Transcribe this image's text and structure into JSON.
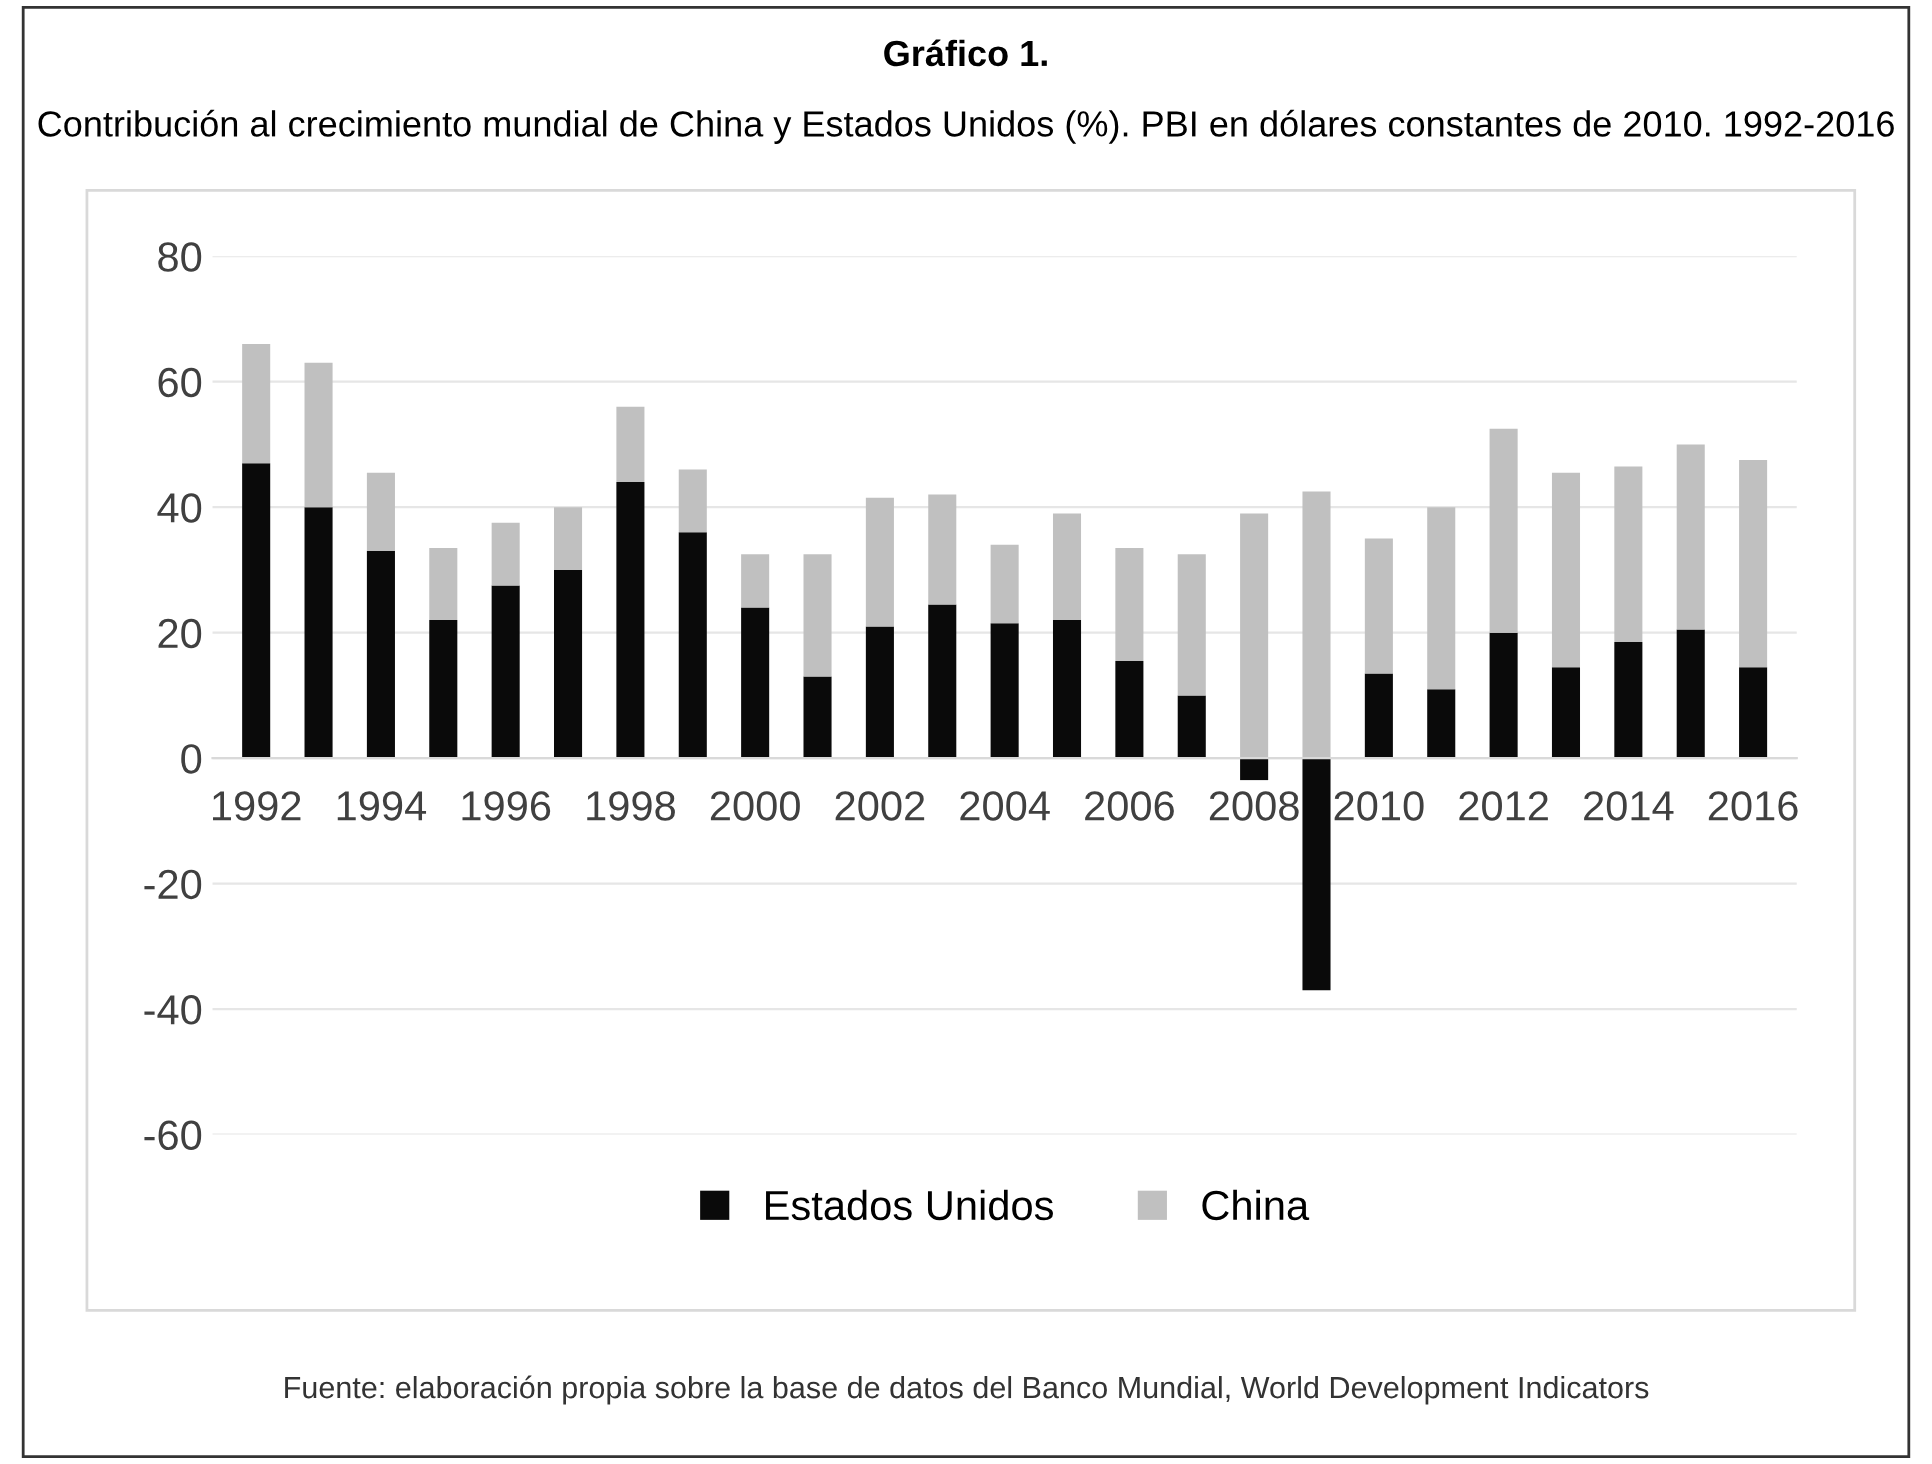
{
  "chart_data": {
    "type": "bar",
    "stacked": true,
    "title": "Gráfico 1.",
    "subtitle": "Contribución al crecimiento mundial de China y Estados Unidos (%). PBI en dólares constantes de 2010. 1992-2016",
    "categories": [
      "1992",
      null,
      "1994",
      null,
      "1996",
      null,
      "1998",
      null,
      "2000",
      null,
      "2002",
      null,
      "2004",
      null,
      "2006",
      null,
      "2008",
      null,
      "2010",
      null,
      "2012",
      null,
      "2014",
      null,
      "2016"
    ],
    "series": [
      {
        "name": "Estados Unidos",
        "color": "#0a0a0a",
        "values": [
          47,
          40,
          33,
          22,
          27.5,
          30,
          44,
          36,
          24,
          13,
          21,
          24.5,
          21.5,
          22,
          15.5,
          10,
          -3.5,
          -37,
          13.5,
          11,
          20,
          14.5,
          18.5,
          20.5,
          14.5
        ]
      },
      {
        "name": "China",
        "color": "#c0c0c0",
        "values": [
          19,
          23,
          12.5,
          11.5,
          10,
          10,
          12,
          10,
          8.5,
          19.5,
          20.5,
          17.5,
          12.5,
          17,
          18,
          22.5,
          39,
          42.5,
          21.5,
          29,
          32.5,
          31,
          28,
          29.5,
          33
        ]
      }
    ],
    "ylim": [
      -60,
      80
    ],
    "yticks": [
      -60,
      -40,
      -20,
      0,
      20,
      40,
      60,
      80
    ],
    "grid": "y",
    "legend": "bottom",
    "annotations": [
      "Fuente: elaboración propia sobre la base de datos del Banco Mundial, World Development Indicators"
    ]
  }
}
